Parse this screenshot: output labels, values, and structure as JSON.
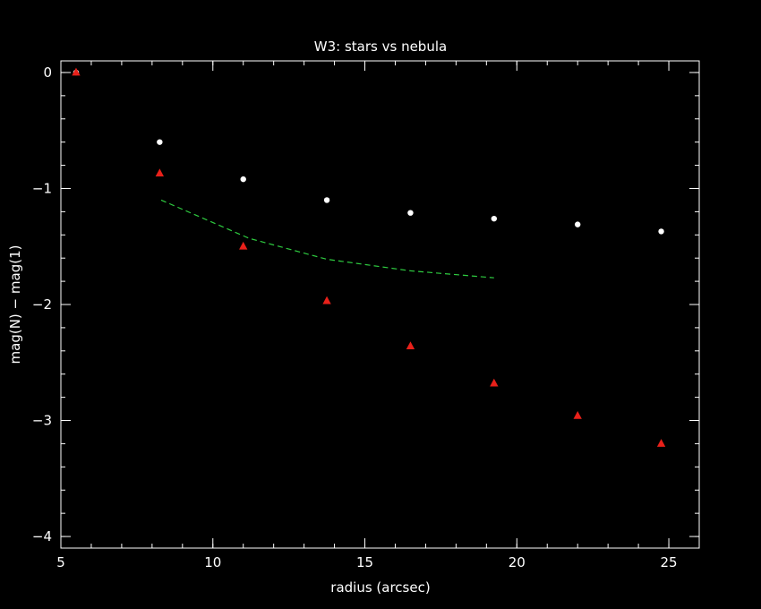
{
  "chart_data": {
    "type": "scatter",
    "title": "W3: stars vs nebula",
    "xlabel": "radius (arcsec)",
    "ylabel": "mag(N) − mag(1)",
    "xlim": [
      5,
      26
    ],
    "ylim": [
      -4.1,
      0.1
    ],
    "x_ticks": [
      5,
      10,
      15,
      20,
      25
    ],
    "x_tick_labels": [
      "5",
      "10",
      "15",
      "20",
      "25"
    ],
    "y_ticks": [
      0,
      -1,
      -2,
      -3,
      -4
    ],
    "y_tick_labels": [
      "0",
      "−1",
      "−2",
      "−3",
      "−4"
    ],
    "x_minor_step": 1,
    "y_minor_step": 0.2,
    "grid": false,
    "background": "#000000",
    "axis_color": "#ffffff",
    "series": [
      {
        "marker": "circle",
        "color": "#ffffff",
        "x": [
          5.5,
          8.25,
          11.0,
          13.75,
          16.5,
          19.25,
          22.0,
          24.75
        ],
        "y": [
          0.0,
          -0.6,
          -0.92,
          -1.1,
          -1.21,
          -1.26,
          -1.31,
          -1.37
        ]
      },
      {
        "marker": "triangle",
        "color": "#e8211a",
        "x": [
          5.5,
          8.25,
          11.0,
          13.75,
          16.5,
          19.25,
          22.0,
          24.75
        ],
        "y": [
          0.0,
          -0.87,
          -1.5,
          -1.97,
          -2.36,
          -2.68,
          -2.96,
          -3.2
        ]
      },
      {
        "marker": "dashed-line",
        "color": "#2ecc40",
        "x": [
          8.3,
          11.2,
          13.75,
          16.5,
          19.25
        ],
        "y": [
          -1.1,
          -1.43,
          -1.61,
          -1.71,
          -1.77
        ]
      }
    ]
  }
}
